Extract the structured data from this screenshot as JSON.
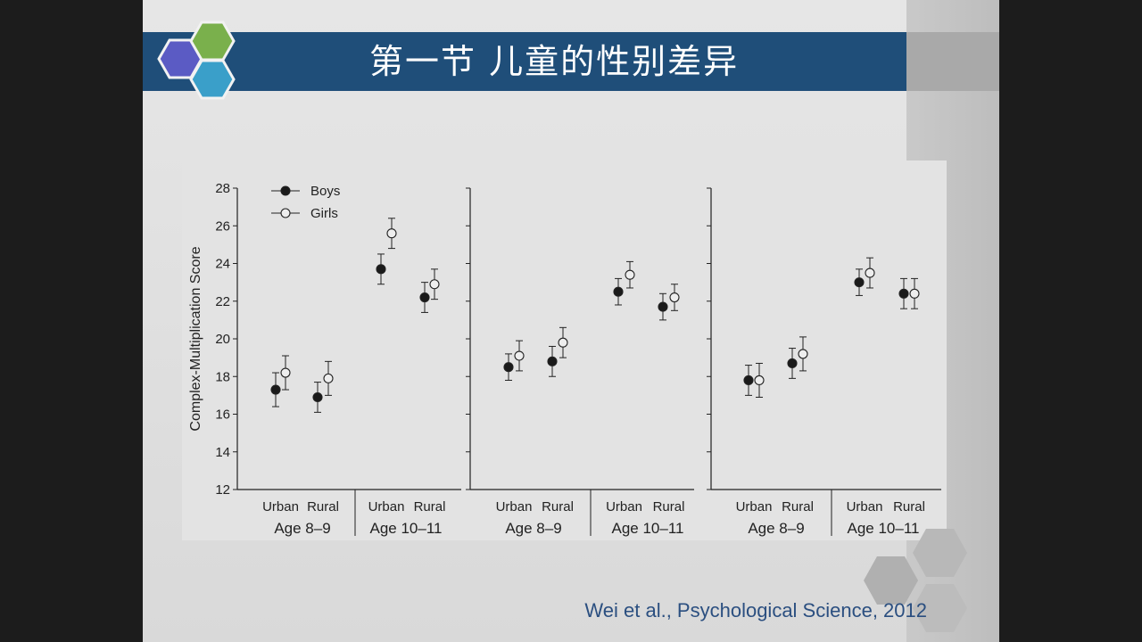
{
  "slide": {
    "title": "第一节 儿童的性别差异",
    "citation": "Wei et al., Psychological Science, 2012"
  },
  "colors": {
    "title_bar": "#1f4e79",
    "citation": "#2b4f80",
    "hex_purple": "#5b5bc4",
    "hex_green": "#7ab04c",
    "hex_blue": "#3a9fc9"
  },
  "chart_data": {
    "type": "scatter",
    "subtype": "dot plot with error bars, three panels",
    "ylabel": "Complex-Multiplication Score",
    "ylim": [
      12,
      28
    ],
    "yticks": [
      12,
      14,
      16,
      18,
      20,
      22,
      24,
      26,
      28
    ],
    "y_tick_labels_on": "first panel only",
    "legend": {
      "placement": "top-left",
      "entries": [
        {
          "name": "Boys",
          "marker": "filled-circle"
        },
        {
          "name": "Girls",
          "marker": "open-circle"
        }
      ]
    },
    "category_labels": [
      "Urban",
      "Rural",
      "Urban",
      "Rural"
    ],
    "age_groups": [
      "Age 8–9",
      "Age 10–11"
    ],
    "panels": [
      {
        "series": [
          {
            "name": "Boys",
            "values": [
              17.3,
              16.9,
              23.7,
              22.2
            ],
            "error": [
              0.9,
              0.8,
              0.8,
              0.8
            ]
          },
          {
            "name": "Girls",
            "values": [
              18.2,
              17.9,
              25.6,
              22.9
            ],
            "error": [
              0.9,
              0.9,
              0.8,
              0.8
            ]
          }
        ]
      },
      {
        "series": [
          {
            "name": "Boys",
            "values": [
              18.5,
              18.8,
              22.5,
              21.7
            ],
            "error": [
              0.7,
              0.8,
              0.7,
              0.7
            ]
          },
          {
            "name": "Girls",
            "values": [
              19.1,
              19.8,
              23.4,
              22.2
            ],
            "error": [
              0.8,
              0.8,
              0.7,
              0.7
            ]
          }
        ]
      },
      {
        "series": [
          {
            "name": "Boys",
            "values": [
              17.8,
              18.7,
              23.0,
              22.4
            ],
            "error": [
              0.8,
              0.8,
              0.7,
              0.8
            ]
          },
          {
            "name": "Girls",
            "values": [
              17.8,
              19.2,
              23.5,
              22.4
            ],
            "error": [
              0.9,
              0.9,
              0.8,
              0.8
            ]
          }
        ]
      }
    ]
  }
}
